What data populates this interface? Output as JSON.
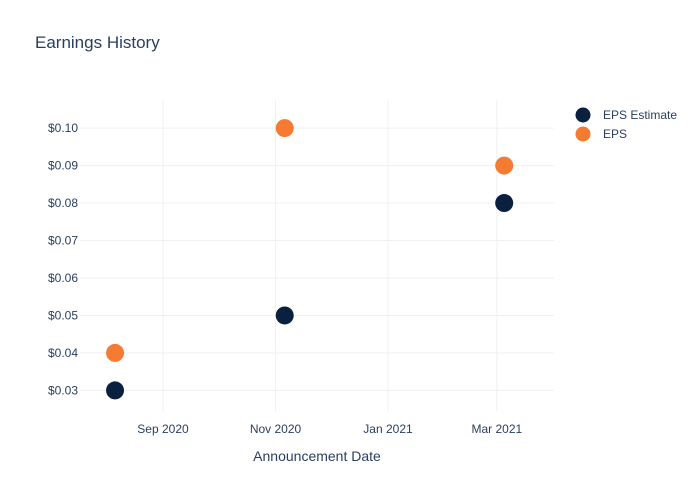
{
  "chart_data": {
    "type": "scatter",
    "title": "Earnings History",
    "xlabel": "Announcement Date",
    "ylabel": "",
    "x_type": "date",
    "x_tick_labels": [
      "Sep 2020",
      "Nov 2020",
      "Jan 2021",
      "Mar 2021"
    ],
    "x_ticks": [
      "2020-09-01",
      "2020-11-01",
      "2021-01-01",
      "2021-03-01"
    ],
    "xlim": [
      "2020-07-18",
      "2021-04-01"
    ],
    "y_ticks": [
      0.03,
      0.04,
      0.05,
      0.06,
      0.07,
      0.08,
      0.09,
      0.1
    ],
    "y_tick_labels": [
      "$0.03",
      "$0.04",
      "$0.05",
      "$0.06",
      "$0.07",
      "$0.08",
      "$0.09",
      "$0.10"
    ],
    "ylim": [
      0.0245,
      0.1075
    ],
    "grid": true,
    "legend_position": "top-right",
    "series": [
      {
        "name": "EPS Estimate",
        "color": "#0b1f3f",
        "points": [
          {
            "x": "2020-08-06",
            "y": 0.03
          },
          {
            "x": "2020-11-06",
            "y": 0.05
          },
          {
            "x": "2021-03-05",
            "y": 0.08
          }
        ]
      },
      {
        "name": "EPS",
        "color": "#f47b31",
        "points": [
          {
            "x": "2020-08-06",
            "y": 0.04
          },
          {
            "x": "2020-11-06",
            "y": 0.1
          },
          {
            "x": "2021-03-05",
            "y": 0.09
          }
        ]
      }
    ]
  }
}
